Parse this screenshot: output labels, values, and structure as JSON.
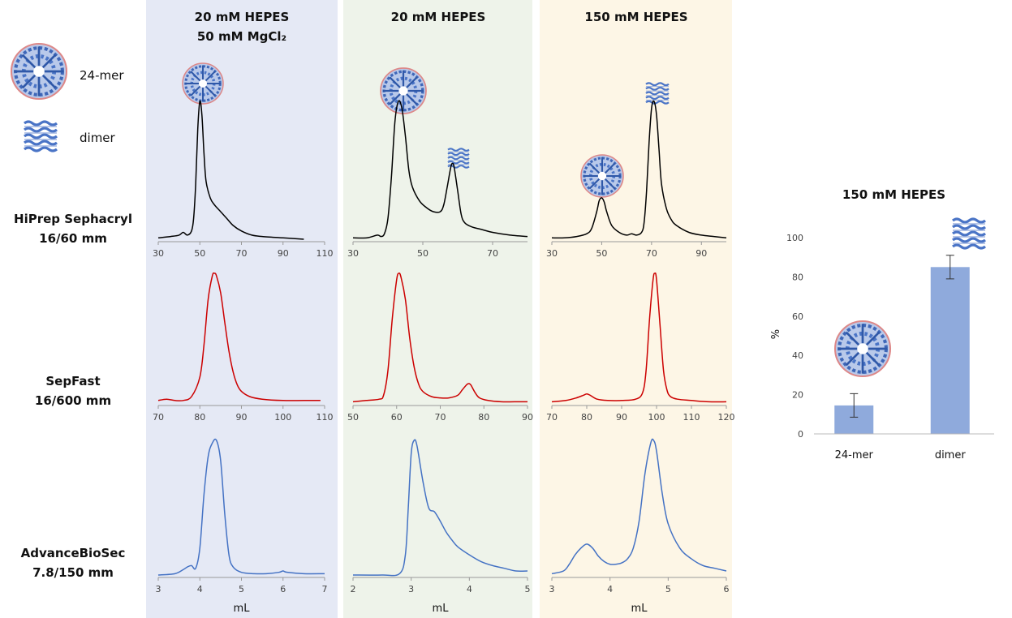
{
  "figure": {
    "columns": [
      [
        "20 mM HEPES",
        "50 mM MgCl₂"
      ],
      [
        "20 mM HEPES"
      ],
      [
        "150 mM HEPES"
      ]
    ],
    "rows": [
      [
        "HiPrep Sephacryl",
        "16/60 mm"
      ],
      [
        "SepFast",
        "16/600 mm"
      ],
      [
        "AdvanceBioSec",
        "7.8/150 mm"
      ]
    ],
    "legend": [
      "24-mer",
      "dimer"
    ]
  },
  "chart_data": [
    {
      "type": "line",
      "color": "#000000",
      "xlim": [
        30,
        110
      ],
      "xticks": [
        30,
        50,
        70,
        90,
        110
      ],
      "ylim": [
        0,
        100
      ],
      "x": [
        30,
        36,
        40,
        42,
        44,
        46,
        47,
        48,
        49,
        50,
        51,
        52,
        53,
        55,
        57,
        60,
        63,
        66,
        70,
        75,
        80,
        90,
        100
      ],
      "values": [
        1,
        2,
        3,
        5,
        3,
        6,
        15,
        40,
        80,
        100,
        90,
        62,
        42,
        30,
        25,
        20,
        15,
        10,
        6,
        3,
        2,
        1,
        0
      ]
    },
    {
      "type": "line",
      "color": "#000000",
      "xlim": [
        30,
        80
      ],
      "xticks": [
        30,
        50,
        70
      ],
      "ylim": [
        0,
        100
      ],
      "x": [
        30,
        34,
        37,
        38,
        39,
        40,
        41,
        42,
        43,
        44,
        45,
        46,
        47,
        49,
        51,
        53,
        55,
        56,
        57,
        58,
        58.5,
        59,
        60,
        61,
        62,
        64,
        67,
        70,
        75,
        80
      ],
      "values": [
        1,
        1,
        3,
        2,
        4,
        15,
        45,
        85,
        100,
        95,
        75,
        50,
        38,
        28,
        23,
        20,
        20,
        25,
        38,
        52,
        55,
        52,
        35,
        18,
        12,
        9,
        7,
        5,
        3,
        2
      ]
    },
    {
      "type": "line",
      "color": "#000000",
      "xlim": [
        30,
        100
      ],
      "xticks": [
        30,
        50,
        70,
        90
      ],
      "ylim": [
        0,
        100
      ],
      "x": [
        30,
        35,
        40,
        44,
        46,
        48,
        49,
        50,
        51,
        52,
        54,
        57,
        60,
        62,
        64,
        66,
        67,
        68,
        69,
        70,
        71,
        72,
        73,
        74,
        76,
        78,
        80,
        85,
        90,
        95,
        100
      ],
      "values": [
        1,
        1,
        2,
        4,
        8,
        20,
        28,
        30,
        27,
        20,
        10,
        5,
        3,
        4,
        3,
        5,
        12,
        35,
        70,
        95,
        100,
        90,
        65,
        40,
        22,
        14,
        10,
        5,
        3,
        2,
        1
      ]
    },
    {
      "type": "line",
      "color": "#cc0000",
      "xlim": [
        70,
        110
      ],
      "xticks": [
        70,
        80,
        90,
        100,
        110
      ],
      "ylim": [
        0,
        100
      ],
      "x": [
        70,
        72,
        74,
        76,
        78,
        80,
        81,
        82,
        83,
        83.5,
        84,
        85,
        86,
        87,
        88,
        89,
        90,
        92,
        95,
        100,
        105,
        109
      ],
      "values": [
        2,
        3,
        2,
        2,
        5,
        20,
        45,
        80,
        98,
        100,
        98,
        85,
        62,
        40,
        24,
        14,
        9,
        5,
        3,
        2,
        2,
        2
      ]
    },
    {
      "type": "line",
      "color": "#cc0000",
      "xlim": [
        50,
        90
      ],
      "xticks": [
        50,
        60,
        70,
        80,
        90
      ],
      "ylim": [
        0,
        100
      ],
      "x": [
        50,
        53,
        56,
        57,
        58,
        59,
        60,
        60.5,
        61,
        62,
        63,
        64,
        65,
        66,
        68,
        70,
        72,
        74,
        75,
        76,
        76.5,
        77,
        78,
        79,
        81,
        84,
        87,
        90
      ],
      "values": [
        1,
        2,
        3,
        6,
        25,
        65,
        95,
        100,
        97,
        80,
        50,
        28,
        15,
        9,
        5,
        4,
        4,
        6,
        10,
        14,
        15,
        14,
        8,
        4,
        2,
        1,
        1,
        1
      ]
    },
    {
      "type": "line",
      "color": "#cc0000",
      "xlim": [
        70,
        120
      ],
      "xticks": [
        70,
        80,
        90,
        100,
        110,
        120
      ],
      "ylim": [
        0,
        100
      ],
      "x": [
        70,
        74,
        77,
        79,
        80,
        81,
        83,
        86,
        90,
        94,
        96,
        97,
        98,
        99,
        99.5,
        100,
        101,
        102,
        103,
        104,
        106,
        110,
        115,
        120
      ],
      "values": [
        1,
        2,
        4,
        6,
        7,
        6,
        3,
        2,
        2,
        3,
        8,
        25,
        65,
        95,
        100,
        95,
        60,
        25,
        10,
        5,
        3,
        2,
        1,
        1
      ]
    },
    {
      "type": "line",
      "color": "#4472c4",
      "xlim": [
        3,
        7
      ],
      "xticks": [
        3,
        4,
        5,
        6,
        7
      ],
      "ylim": [
        0,
        100
      ],
      "xlabel": "mL",
      "x": [
        3,
        3.4,
        3.6,
        3.7,
        3.8,
        3.9,
        4.0,
        4.1,
        4.2,
        4.3,
        4.4,
        4.5,
        4.6,
        4.7,
        4.8,
        5,
        5.3,
        5.6,
        5.9,
        6.0,
        6.1,
        6.5,
        7
      ],
      "values": [
        0,
        1,
        4,
        6,
        7,
        5,
        20,
        60,
        88,
        98,
        100,
        85,
        45,
        15,
        6,
        2,
        1,
        1,
        2,
        3,
        2,
        1,
        1
      ]
    },
    {
      "type": "line",
      "color": "#4472c4",
      "xlim": [
        2,
        5
      ],
      "xticks": [
        2,
        3,
        4,
        5
      ],
      "ylim": [
        0,
        100
      ],
      "xlabel": "mL",
      "x": [
        2,
        2.5,
        2.8,
        2.9,
        2.95,
        3.0,
        3.05,
        3.1,
        3.2,
        3.3,
        3.4,
        3.5,
        3.6,
        3.7,
        3.8,
        4.0,
        4.2,
        4.4,
        4.6,
        4.8,
        5
      ],
      "values": [
        0,
        0,
        1,
        15,
        50,
        90,
        100,
        96,
        70,
        50,
        47,
        40,
        32,
        26,
        21,
        15,
        10,
        7,
        5,
        3,
        3
      ]
    },
    {
      "type": "line",
      "color": "#4472c4",
      "xlim": [
        3,
        6
      ],
      "xticks": [
        3,
        4,
        5,
        6
      ],
      "ylim": [
        0,
        100
      ],
      "xlabel": "mL",
      "x": [
        3,
        3.2,
        3.3,
        3.4,
        3.5,
        3.6,
        3.7,
        3.8,
        3.9,
        4.0,
        4.1,
        4.2,
        4.3,
        4.4,
        4.5,
        4.6,
        4.7,
        4.75,
        4.8,
        4.9,
        5.0,
        5.2,
        5.4,
        5.6,
        5.8,
        6
      ],
      "values": [
        1,
        3,
        8,
        15,
        20,
        23,
        20,
        14,
        10,
        8,
        8,
        9,
        12,
        20,
        40,
        75,
        98,
        100,
        92,
        60,
        38,
        20,
        12,
        7,
        5,
        3
      ]
    },
    {
      "type": "bar",
      "title": "150 mM HEPES",
      "ylabel": "%",
      "color": "#8faadc",
      "categories": [
        "24-mer",
        "dimer"
      ],
      "values": [
        14.5,
        85
      ],
      "errors": [
        6,
        6
      ],
      "ylim": [
        0,
        100
      ],
      "yticks": [
        0,
        20,
        40,
        60,
        80,
        100
      ]
    }
  ]
}
